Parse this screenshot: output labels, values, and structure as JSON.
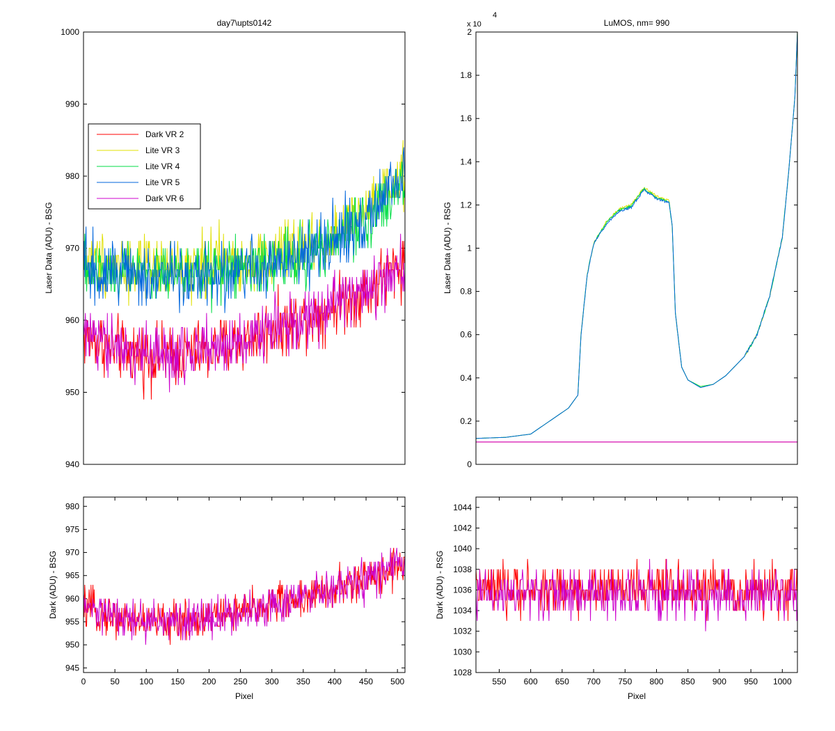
{
  "chart_data": [
    {
      "id": "top-left",
      "type": "line",
      "title": "day7\\upts0142",
      "ylabel": "Laser Data (ADU) - BSG",
      "xlabel": "",
      "xlim": [
        0,
        512
      ],
      "ylim": [
        940,
        1000
      ],
      "xticks": [],
      "yticks": [
        940,
        950,
        960,
        970,
        980,
        990,
        1000
      ],
      "legend_position": "upper-left",
      "series": [
        {
          "name": "Dark VR 2",
          "color": "#ff0000",
          "pattern": "noisy",
          "x": [
            0,
            50,
            100,
            150,
            200,
            250,
            300,
            350,
            400,
            450,
            512
          ],
          "values": [
            958,
            956,
            955,
            955,
            956,
            957,
            959,
            960,
            962,
            964,
            968
          ],
          "amp": 4
        },
        {
          "name": "Lite VR 3",
          "color": "#e0e000",
          "pattern": "noisy",
          "x": [
            0,
            50,
            100,
            150,
            200,
            250,
            300,
            350,
            400,
            450,
            512
          ],
          "values": [
            968,
            968,
            967,
            967,
            968,
            968,
            969,
            970,
            972,
            975,
            980
          ],
          "amp": 4
        },
        {
          "name": "Lite VR 4",
          "color": "#00dd44",
          "pattern": "noisy",
          "x": [
            0,
            50,
            100,
            150,
            200,
            250,
            300,
            350,
            400,
            450,
            512
          ],
          "values": [
            967,
            967,
            967,
            966,
            967,
            967,
            968,
            969,
            971,
            974,
            979
          ],
          "amp": 4
        },
        {
          "name": "Lite VR 5",
          "color": "#0066dd",
          "pattern": "noisy",
          "x": [
            0,
            50,
            100,
            150,
            200,
            250,
            300,
            350,
            400,
            450,
            512
          ],
          "values": [
            967,
            967,
            966,
            966,
            966,
            967,
            968,
            969,
            971,
            974,
            980
          ],
          "amp": 4
        },
        {
          "name": "Dark VR 6",
          "color": "#cc00cc",
          "pattern": "noisy",
          "x": [
            0,
            50,
            100,
            150,
            200,
            250,
            300,
            350,
            400,
            450,
            512
          ],
          "values": [
            958,
            956,
            955,
            955,
            956,
            957,
            959,
            960,
            962,
            964,
            968
          ],
          "amp": 4
        }
      ]
    },
    {
      "id": "top-right",
      "type": "line",
      "title": "LuMOS, nm= 990",
      "ylabel": "Laser Data (ADU) - RSG",
      "xlabel": "",
      "y_multiplier_label": "x 10",
      "y_multiplier_exp": "4",
      "xlim": [
        513,
        1024
      ],
      "ylim": [
        0,
        2
      ],
      "xticks": [],
      "yticks": [
        0,
        0.2,
        0.4,
        0.6,
        0.8,
        1,
        1.2,
        1.4,
        1.6,
        1.8,
        2
      ],
      "series": [
        {
          "name": "Lite VR 3",
          "color": "#e0e000",
          "pattern": "smooth",
          "x": [
            513,
            560,
            600,
            630,
            660,
            675,
            680,
            690,
            700,
            720,
            740,
            760,
            770,
            780,
            800,
            820,
            825,
            830,
            840,
            850,
            870,
            890,
            910,
            940,
            960,
            980,
            1000,
            1010,
            1020,
            1024
          ],
          "values": [
            0.12,
            0.125,
            0.14,
            0.2,
            0.26,
            0.32,
            0.6,
            0.88,
            1.02,
            1.12,
            1.18,
            1.2,
            1.24,
            1.28,
            1.24,
            1.22,
            1.1,
            0.7,
            0.45,
            0.39,
            0.36,
            0.37,
            0.41,
            0.5,
            0.6,
            0.78,
            1.05,
            1.35,
            1.7,
            2.0
          ]
        },
        {
          "name": "Lite VR 4",
          "color": "#00dd44",
          "pattern": "smooth",
          "x": [
            513,
            560,
            600,
            630,
            660,
            675,
            680,
            690,
            700,
            720,
            740,
            760,
            770,
            780,
            800,
            820,
            825,
            830,
            840,
            850,
            870,
            890,
            910,
            940,
            960,
            980,
            1000,
            1010,
            1020,
            1024
          ],
          "values": [
            0.12,
            0.125,
            0.14,
            0.2,
            0.26,
            0.32,
            0.6,
            0.88,
            1.02,
            1.12,
            1.175,
            1.195,
            1.235,
            1.275,
            1.235,
            1.215,
            1.1,
            0.7,
            0.45,
            0.39,
            0.36,
            0.37,
            0.41,
            0.5,
            0.6,
            0.78,
            1.05,
            1.35,
            1.7,
            2.0
          ]
        },
        {
          "name": "Lite VR 5",
          "color": "#0066dd",
          "pattern": "smooth",
          "x": [
            513,
            560,
            600,
            630,
            660,
            675,
            680,
            690,
            700,
            720,
            740,
            760,
            770,
            780,
            800,
            820,
            825,
            830,
            840,
            850,
            870,
            890,
            910,
            940,
            960,
            980,
            1000,
            1010,
            1020,
            1024
          ],
          "values": [
            0.12,
            0.125,
            0.14,
            0.2,
            0.26,
            0.32,
            0.6,
            0.88,
            1.02,
            1.11,
            1.17,
            1.19,
            1.23,
            1.27,
            1.23,
            1.21,
            1.1,
            0.7,
            0.45,
            0.39,
            0.355,
            0.37,
            0.41,
            0.5,
            0.6,
            0.78,
            1.05,
            1.35,
            1.7,
            2.0
          ]
        },
        {
          "name": "Dark VR 2",
          "color": "#ff0000",
          "pattern": "smooth",
          "x": [
            513,
            1024
          ],
          "values": [
            0.1036,
            0.1036
          ]
        },
        {
          "name": "Dark VR 6",
          "color": "#cc00cc",
          "pattern": "smooth",
          "x": [
            513,
            1024
          ],
          "values": [
            0.1035,
            0.1035
          ]
        }
      ]
    },
    {
      "id": "bottom-left",
      "type": "line",
      "title": "",
      "ylabel": "Dark (ADU) - BSG",
      "xlabel": "Pixel",
      "xlim": [
        0,
        512
      ],
      "ylim": [
        944,
        982
      ],
      "xticks": [
        0,
        50,
        100,
        150,
        200,
        250,
        300,
        350,
        400,
        450,
        500
      ],
      "yticks": [
        945,
        950,
        955,
        960,
        965,
        970,
        975,
        980
      ],
      "series": [
        {
          "name": "Dark VR 2",
          "color": "#ff0000",
          "pattern": "noisy",
          "x": [
            0,
            50,
            100,
            150,
            200,
            250,
            300,
            350,
            400,
            450,
            512
          ],
          "values": [
            958,
            956,
            955,
            955,
            956,
            957,
            959,
            960,
            962,
            964,
            968
          ],
          "amp": 4
        },
        {
          "name": "Dark VR 6",
          "color": "#cc00cc",
          "pattern": "noisy",
          "x": [
            0,
            50,
            100,
            150,
            200,
            250,
            300,
            350,
            400,
            450,
            512
          ],
          "values": [
            958,
            956,
            955,
            955,
            956,
            957,
            959,
            960,
            962,
            964,
            968
          ],
          "amp": 4
        }
      ]
    },
    {
      "id": "bottom-right",
      "type": "line",
      "title": "",
      "ylabel": "Dark (ADU) - RSG",
      "xlabel": "Pixel",
      "xlim": [
        513,
        1024
      ],
      "ylim": [
        1028,
        1045
      ],
      "xticks": [
        550,
        600,
        650,
        700,
        750,
        800,
        850,
        900,
        950,
        1000
      ],
      "yticks": [
        1028,
        1030,
        1032,
        1034,
        1036,
        1038,
        1040,
        1042,
        1044
      ],
      "series": [
        {
          "name": "Dark VR 2",
          "color": "#ff0000",
          "pattern": "noisy",
          "x": [
            513,
            1024
          ],
          "values": [
            1036,
            1036
          ],
          "amp": 2.2
        },
        {
          "name": "Dark VR 6",
          "color": "#cc00cc",
          "pattern": "noisy",
          "x": [
            513,
            1024
          ],
          "values": [
            1035.6,
            1035.6
          ],
          "amp": 2.2
        }
      ]
    }
  ]
}
